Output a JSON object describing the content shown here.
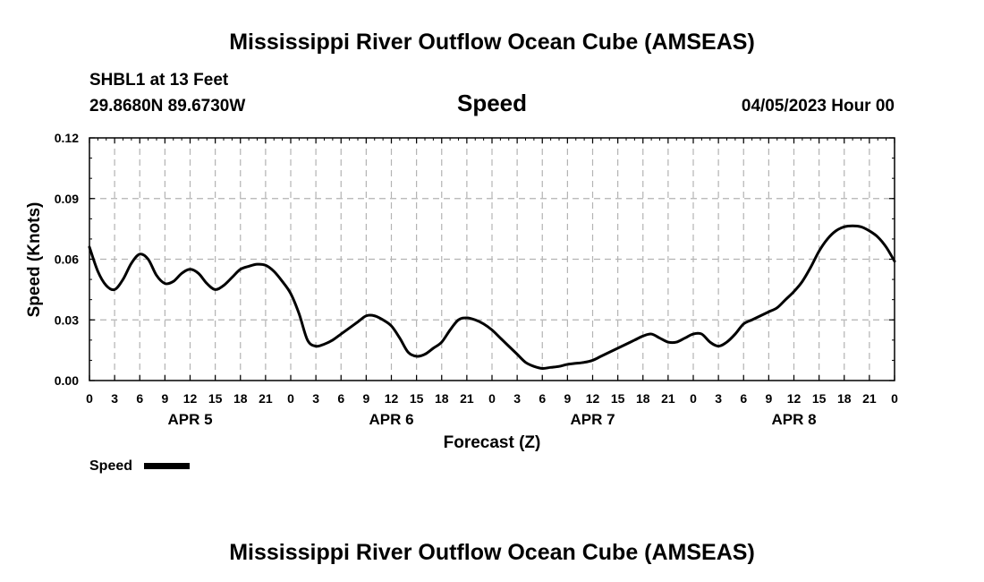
{
  "header": {
    "title": "Mississippi River Outflow Ocean Cube (AMSEAS)",
    "station": "SHBL1 at 13 Feet",
    "coords": "29.8680N  89.6730W",
    "variable": "Speed",
    "datetime": "04/05/2023 Hour 00"
  },
  "footer": {
    "title": "Mississippi River Outflow Ocean Cube (AMSEAS)"
  },
  "chart_data": {
    "type": "line",
    "title": "Speed",
    "xlabel": "Forecast (Z)",
    "ylabel": "Speed (Knots)",
    "xlim": [
      0,
      96
    ],
    "ylim": [
      0,
      0.12
    ],
    "grid": true,
    "x_major_step": 3,
    "y_ticks": [
      0.0,
      0.03,
      0.06,
      0.09,
      0.12
    ],
    "y_tick_labels": [
      "0.00",
      "0.03",
      "0.06",
      "0.09",
      "0.12"
    ],
    "x_tick_labels": [
      "0",
      "3",
      "6",
      "9",
      "12",
      "15",
      "18",
      "21",
      "0",
      "3",
      "6",
      "9",
      "12",
      "15",
      "18",
      "21",
      "0",
      "3",
      "6",
      "9",
      "12",
      "15",
      "18",
      "21",
      "0",
      "3",
      "6",
      "9",
      "12",
      "15",
      "18",
      "21",
      "0"
    ],
    "day_labels": [
      {
        "label": "APR 5",
        "center_hour": 12
      },
      {
        "label": "APR 6",
        "center_hour": 36
      },
      {
        "label": "APR 7",
        "center_hour": 60
      },
      {
        "label": "APR 8",
        "center_hour": 84
      }
    ],
    "legend": {
      "position": "bottom-left",
      "entries": [
        {
          "name": "Speed",
          "color": "#000000"
        }
      ]
    },
    "series": [
      {
        "name": "Speed",
        "color": "#000000",
        "x": [
          0,
          1,
          2,
          3,
          4,
          5,
          6,
          7,
          8,
          9,
          10,
          11,
          12,
          13,
          14,
          15,
          16,
          17,
          18,
          19,
          20,
          21,
          22,
          23,
          24,
          25,
          26,
          27,
          28,
          29,
          30,
          31,
          32,
          33,
          34,
          35,
          36,
          37,
          38,
          39,
          40,
          41,
          42,
          43,
          44,
          45,
          46,
          47,
          48,
          49,
          50,
          51,
          52,
          53,
          54,
          55,
          56,
          57,
          58,
          59,
          60,
          61,
          62,
          63,
          64,
          65,
          66,
          67,
          68,
          69,
          70,
          71,
          72,
          73,
          74,
          75,
          76,
          77,
          78,
          79,
          80,
          81,
          82,
          83,
          84,
          85,
          86,
          87,
          88,
          89,
          90,
          91,
          92,
          93,
          94,
          95,
          96
        ],
        "values": [
          0.066,
          0.054,
          0.047,
          0.045,
          0.05,
          0.058,
          0.0625,
          0.06,
          0.052,
          0.048,
          0.049,
          0.053,
          0.055,
          0.053,
          0.048,
          0.045,
          0.047,
          0.051,
          0.055,
          0.0565,
          0.0575,
          0.057,
          0.054,
          0.049,
          0.043,
          0.033,
          0.02,
          0.017,
          0.018,
          0.02,
          0.023,
          0.026,
          0.029,
          0.032,
          0.032,
          0.03,
          0.027,
          0.021,
          0.014,
          0.012,
          0.013,
          0.016,
          0.019,
          0.025,
          0.03,
          0.031,
          0.03,
          0.028,
          0.025,
          0.021,
          0.017,
          0.013,
          0.009,
          0.007,
          0.006,
          0.0065,
          0.007,
          0.008,
          0.0085,
          0.009,
          0.01,
          0.012,
          0.014,
          0.016,
          0.018,
          0.02,
          0.022,
          0.023,
          0.021,
          0.019,
          0.019,
          0.021,
          0.023,
          0.023,
          0.019,
          0.017,
          0.019,
          0.023,
          0.028,
          0.03,
          0.032,
          0.034,
          0.036,
          0.04,
          0.044,
          0.049,
          0.056,
          0.064,
          0.07,
          0.074,
          0.076,
          0.0765,
          0.076,
          0.074,
          0.071,
          0.066,
          0.059
        ]
      }
    ]
  }
}
